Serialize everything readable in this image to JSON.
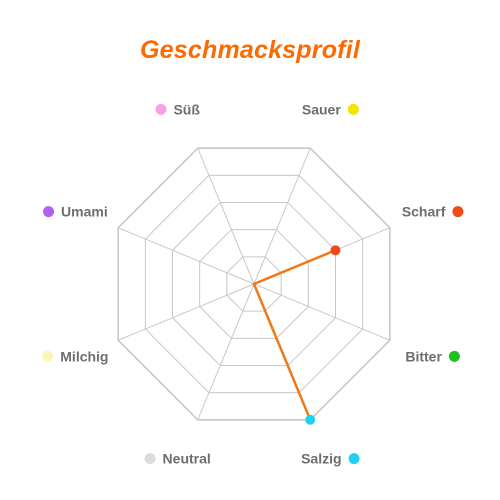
{
  "chart_data": {
    "type": "radar",
    "title": "Geschmacksprofil",
    "title_color": "#ff6a00",
    "range": [
      0,
      10
    ],
    "grid_rings": 5,
    "grid_color": "#c8c8c8",
    "series": [
      {
        "values": [
          0,
          6,
          0,
          10,
          0,
          0,
          0,
          0
        ],
        "stroke": "#f07817",
        "fill": "#fcc79a"
      }
    ],
    "axes": [
      {
        "label": "Sauer",
        "color": "#f5e300"
      },
      {
        "label": "Scharf",
        "color": "#f04a16"
      },
      {
        "label": "Bitter",
        "color": "#1cc21c"
      },
      {
        "label": "Salzig",
        "color": "#1ed1f0"
      },
      {
        "label": "Neutral",
        "color": "#dcdcdc"
      },
      {
        "label": "Milchig",
        "color": "#faf5b8"
      },
      {
        "label": "Umami",
        "color": "#b160f0"
      },
      {
        "label": "Süß",
        "color": "#f7a1e6"
      }
    ]
  }
}
